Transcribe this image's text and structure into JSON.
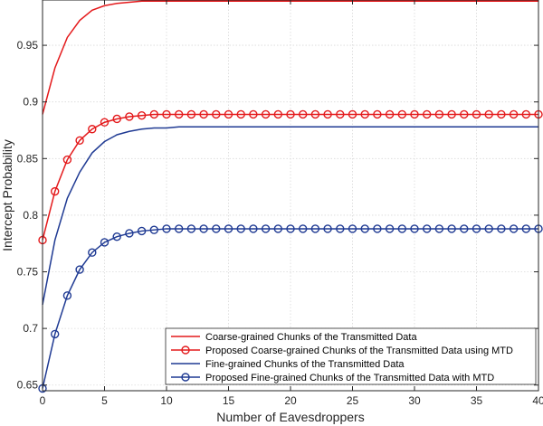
{
  "chart_data": {
    "type": "line",
    "title": "",
    "xlabel": "Number of Eavesdroppers",
    "ylabel": "Intercept Probability",
    "xlim": [
      0,
      40
    ],
    "ylim": [
      0.645,
      0.99
    ],
    "xticks": [
      0,
      5,
      10,
      15,
      20,
      25,
      30,
      35,
      40
    ],
    "yticks": [
      0.65,
      0.7,
      0.75,
      0.8,
      0.85,
      0.9,
      0.95
    ],
    "ytick_labels": [
      "0.65",
      "0.7",
      "0.75",
      "0.8",
      "0.85",
      "0.9",
      "0.95"
    ],
    "grid": true,
    "legend_placement": "bottom-right",
    "x": [
      0,
      1,
      2,
      3,
      4,
      5,
      6,
      7,
      8,
      9,
      10,
      11,
      12,
      13,
      14,
      15,
      16,
      17,
      18,
      19,
      20,
      21,
      22,
      23,
      24,
      25,
      26,
      27,
      28,
      29,
      30,
      31,
      32,
      33,
      34,
      35,
      36,
      37,
      38,
      39,
      40
    ],
    "series": [
      {
        "name": "Coarse-grained Chunks of the Transmitted Data",
        "color": "#e41a1c",
        "marker": "none",
        "values": [
          0.889,
          0.93,
          0.957,
          0.972,
          0.981,
          0.985,
          0.987,
          0.988,
          0.989,
          0.989,
          0.989,
          0.989,
          0.989,
          0.989,
          0.989,
          0.989,
          0.989,
          0.989,
          0.989,
          0.989,
          0.989,
          0.989,
          0.989,
          0.989,
          0.989,
          0.989,
          0.989,
          0.989,
          0.989,
          0.989,
          0.989,
          0.989,
          0.989,
          0.989,
          0.989,
          0.989,
          0.989,
          0.989,
          0.989,
          0.989,
          0.989
        ]
      },
      {
        "name": "Proposed Coarse-grained Chunks of the Transmitted Data using MTD",
        "color": "#e41a1c",
        "marker": "circle",
        "values": [
          0.778,
          0.821,
          0.849,
          0.866,
          0.876,
          0.882,
          0.885,
          0.887,
          0.888,
          0.889,
          0.889,
          0.889,
          0.889,
          0.889,
          0.889,
          0.889,
          0.889,
          0.889,
          0.889,
          0.889,
          0.889,
          0.889,
          0.889,
          0.889,
          0.889,
          0.889,
          0.889,
          0.889,
          0.889,
          0.889,
          0.889,
          0.889,
          0.889,
          0.889,
          0.889,
          0.889,
          0.889,
          0.889,
          0.889,
          0.889,
          0.889
        ]
      },
      {
        "name": "Fine-grained Chunks of the Transmitted Data",
        "color": "#1f3a93",
        "marker": "none",
        "values": [
          0.721,
          0.778,
          0.815,
          0.838,
          0.855,
          0.865,
          0.871,
          0.874,
          0.876,
          0.877,
          0.877,
          0.878,
          0.878,
          0.878,
          0.878,
          0.878,
          0.878,
          0.878,
          0.878,
          0.878,
          0.878,
          0.878,
          0.878,
          0.878,
          0.878,
          0.878,
          0.878,
          0.878,
          0.878,
          0.878,
          0.878,
          0.878,
          0.878,
          0.878,
          0.878,
          0.878,
          0.878,
          0.878,
          0.878,
          0.878,
          0.878
        ]
      },
      {
        "name": "Proposed Fine-grained Chunks of the Transmitted Data with MTD",
        "color": "#1f3a93",
        "marker": "circle",
        "values": [
          0.647,
          0.695,
          0.729,
          0.752,
          0.767,
          0.776,
          0.781,
          0.784,
          0.786,
          0.787,
          0.788,
          0.788,
          0.788,
          0.788,
          0.788,
          0.788,
          0.788,
          0.788,
          0.788,
          0.788,
          0.788,
          0.788,
          0.788,
          0.788,
          0.788,
          0.788,
          0.788,
          0.788,
          0.788,
          0.788,
          0.788,
          0.788,
          0.788,
          0.788,
          0.788,
          0.788,
          0.788,
          0.788,
          0.788,
          0.788,
          0.788
        ]
      }
    ]
  }
}
